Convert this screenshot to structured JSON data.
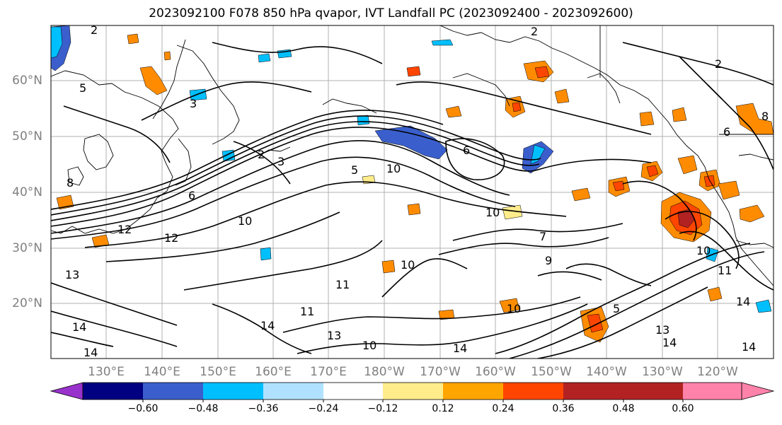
{
  "title": "2023092100 F078 850 hPa qvapor, IVT Landfall PC (2023092400 - 2023092600)",
  "latitude_labels": [
    "60°N",
    "50°N",
    "40°N",
    "30°N",
    "20°N"
  ],
  "longitude_labels": [
    "130°E",
    "140°E",
    "150°E",
    "160°E",
    "170°E",
    "180°W",
    "170°W",
    "160°W",
    "150°W",
    "140°W",
    "130°W",
    "120°W"
  ],
  "contour_labels": [
    "2",
    "2",
    "3",
    "5",
    "2",
    "3",
    "5",
    "6",
    "8",
    "6",
    "2",
    "12",
    "10",
    "10",
    "10",
    "13",
    "14",
    "14",
    "11",
    "13",
    "10",
    "11",
    "9",
    "10",
    "14",
    "14",
    "13",
    "11",
    "14",
    "14",
    "10",
    "5",
    "6",
    "8",
    "14",
    "12",
    "7",
    "10"
  ],
  "colorbar": {
    "colors": [
      "#9932cc",
      "#000080",
      "#3a5fcd",
      "#00bfff",
      "#b0e2ff",
      "#ffffff",
      "#ffec8b",
      "#ffa500",
      "#ff4500",
      "#b22222",
      "#ff82ab"
    ],
    "tick_labels": [
      "−0.60",
      "−0.48",
      "−0.36",
      "−0.24",
      "−0.12",
      "0.12",
      "0.24",
      "0.36",
      "0.48",
      "0.60"
    ]
  }
}
